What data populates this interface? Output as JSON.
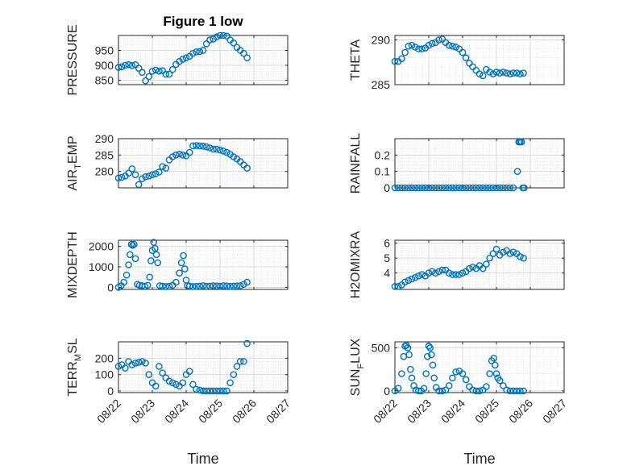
{
  "figure": {
    "title": "Figure 1 low"
  },
  "chart_data": [
    {
      "type": "scatter",
      "title": "Figure 1 low",
      "ylabel": "PRESSURE",
      "ylabel_parts": [
        "PRESSURE"
      ],
      "ylim": [
        835,
        1000
      ],
      "yticks": [
        850,
        900,
        950
      ],
      "ytick_labels": [
        "850",
        "900",
        "950"
      ],
      "xlim": [
        0,
        5
      ],
      "grid": true,
      "x": [
        0.0,
        0.1,
        0.2,
        0.3,
        0.4,
        0.5,
        0.6,
        0.7,
        0.8,
        0.9,
        1.0,
        1.1,
        1.2,
        1.3,
        1.4,
        1.5,
        1.6,
        1.7,
        1.8,
        1.9,
        2.0,
        2.1,
        2.2,
        2.3,
        2.4,
        2.5,
        2.6,
        2.7,
        2.8,
        2.9,
        3.0,
        3.1,
        3.2,
        3.3,
        3.4,
        3.5,
        3.6,
        3.7,
        3.8
      ],
      "y": [
        893,
        895,
        900,
        902,
        899,
        902,
        890,
        876,
        848,
        862,
        880,
        884,
        880,
        882,
        870,
        870,
        886,
        903,
        913,
        920,
        925,
        930,
        940,
        945,
        946,
        950,
        972,
        985,
        988,
        995,
        1000,
        1000,
        998,
        985,
        975,
        960,
        950,
        940,
        925
      ]
    },
    {
      "type": "scatter",
      "ylabel": "THETA",
      "ylabel_parts": [
        "THETA"
      ],
      "ylim": [
        285,
        290.5
      ],
      "yticks": [
        285,
        290
      ],
      "ytick_labels": [
        "285",
        "290"
      ],
      "xlim": [
        0,
        5
      ],
      "grid": true,
      "x": [
        0.0,
        0.1,
        0.2,
        0.3,
        0.4,
        0.5,
        0.6,
        0.7,
        0.8,
        0.9,
        1.0,
        1.1,
        1.2,
        1.3,
        1.4,
        1.5,
        1.6,
        1.7,
        1.8,
        1.9,
        2.0,
        2.1,
        2.2,
        2.3,
        2.4,
        2.5,
        2.6,
        2.7,
        2.8,
        2.9,
        3.0,
        3.1,
        3.2,
        3.3,
        3.4,
        3.5,
        3.6,
        3.7,
        3.8
      ],
      "y": [
        287.6,
        287.6,
        287.9,
        288.6,
        289.3,
        289.4,
        289.2,
        289.0,
        289.0,
        289.1,
        289.4,
        289.6,
        289.7,
        290.0,
        290.1,
        289.7,
        289.4,
        289.3,
        289.2,
        289.0,
        288.6,
        288.0,
        287.4,
        287.0,
        286.6,
        286.2,
        286.0,
        286.7,
        286.4,
        286.2,
        286.4,
        286.3,
        286.4,
        286.3,
        286.2,
        286.3,
        286.3,
        286.2,
        286.3
      ]
    },
    {
      "type": "scatter",
      "ylabel": "AIR_TEMP",
      "ylabel_parts": [
        "AIR",
        "T",
        "EMP"
      ],
      "ylim": [
        275,
        290
      ],
      "yticks": [
        280,
        285,
        290
      ],
      "ytick_labels": [
        "280",
        "285",
        "290"
      ],
      "xlim": [
        0,
        5
      ],
      "grid": true,
      "x": [
        0.0,
        0.1,
        0.2,
        0.3,
        0.4,
        0.5,
        0.6,
        0.7,
        0.8,
        0.9,
        1.0,
        1.1,
        1.2,
        1.3,
        1.4,
        1.5,
        1.6,
        1.7,
        1.8,
        1.9,
        2.0,
        2.1,
        2.2,
        2.3,
        2.4,
        2.5,
        2.6,
        2.7,
        2.8,
        2.9,
        3.0,
        3.1,
        3.2,
        3.3,
        3.4,
        3.5,
        3.6,
        3.7,
        3.8
      ],
      "y": [
        278.0,
        278.2,
        278.6,
        279.5,
        280.8,
        279.0,
        276.0,
        277.8,
        278.4,
        278.6,
        279.0,
        279.3,
        279.8,
        281.5,
        281.0,
        283.5,
        284.5,
        285.0,
        285.3,
        285.0,
        284.8,
        285.8,
        287.8,
        287.9,
        287.8,
        287.7,
        287.5,
        287.2,
        286.8,
        286.8,
        286.5,
        286.2,
        285.8,
        285.2,
        284.5,
        283.8,
        283.0,
        282.0,
        281.0
      ]
    },
    {
      "type": "scatter",
      "ylabel": "RAINFALL",
      "ylabel_parts": [
        "RAINFALL"
      ],
      "ylim": [
        0,
        0.3
      ],
      "yticks": [
        0,
        0.1,
        0.2
      ],
      "ytick_labels": [
        "0",
        "0.1",
        "0.2"
      ],
      "xlim": [
        0,
        5
      ],
      "grid": true,
      "x": [
        0.0,
        0.1,
        0.2,
        0.3,
        0.4,
        0.5,
        0.6,
        0.7,
        0.8,
        0.9,
        1.0,
        1.1,
        1.2,
        1.3,
        1.4,
        1.5,
        1.6,
        1.7,
        1.8,
        1.9,
        2.0,
        2.1,
        2.2,
        2.3,
        2.4,
        2.5,
        2.6,
        2.7,
        2.8,
        2.9,
        3.0,
        3.1,
        3.2,
        3.3,
        3.4,
        3.5,
        3.62,
        3.66,
        3.7,
        3.74,
        3.78,
        3.82
      ],
      "y": [
        0,
        0,
        0,
        0,
        0,
        0,
        0,
        0,
        0,
        0,
        0,
        0,
        0,
        0,
        0,
        0,
        0,
        0,
        0,
        0,
        0,
        0,
        0,
        0,
        0,
        0,
        0,
        0,
        0,
        0,
        0,
        0,
        0,
        0,
        0,
        0,
        0.1,
        0.28,
        0.28,
        0.28,
        0,
        0
      ]
    },
    {
      "type": "scatter",
      "ylabel": "MIXDEPTH",
      "ylabel_parts": [
        "MIXDEPTH"
      ],
      "ylim": [
        -100,
        2300
      ],
      "yticks": [
        0,
        1000,
        2000
      ],
      "ytick_labels": [
        "0",
        "1000",
        "2000"
      ],
      "xlim": [
        0,
        5
      ],
      "grid": true,
      "x": [
        0.0,
        0.08,
        0.16,
        0.24,
        0.3,
        0.34,
        0.38,
        0.42,
        0.46,
        0.5,
        0.56,
        0.62,
        0.7,
        0.78,
        0.86,
        0.92,
        0.96,
        1.0,
        1.04,
        1.08,
        1.12,
        1.16,
        1.22,
        1.3,
        1.4,
        1.5,
        1.6,
        1.7,
        1.8,
        1.86,
        1.92,
        1.96,
        2.0,
        2.04,
        2.1,
        2.2,
        2.3,
        2.4,
        2.5,
        2.6,
        2.7,
        2.8,
        2.9,
        3.0,
        3.1,
        3.2,
        3.3,
        3.4,
        3.5,
        3.6,
        3.7,
        3.8
      ],
      "y": [
        0,
        80,
        250,
        600,
        1100,
        1600,
        2100,
        2050,
        2100,
        1400,
        150,
        100,
        80,
        50,
        100,
        500,
        1300,
        1800,
        2200,
        1900,
        1600,
        1200,
        80,
        60,
        40,
        50,
        100,
        250,
        700,
        1200,
        1550,
        900,
        350,
        80,
        60,
        40,
        50,
        60,
        80,
        50,
        60,
        80,
        70,
        60,
        80,
        70,
        50,
        60,
        70,
        80,
        150,
        250
      ]
    },
    {
      "type": "scatter",
      "ylabel": "H2OMIXRA",
      "ylabel_parts": [
        "H2OMIXRA"
      ],
      "ylim": [
        2.9,
        6.2
      ],
      "yticks": [
        4,
        5,
        6
      ],
      "ytick_labels": [
        "4",
        "5",
        "6"
      ],
      "xlim": [
        0,
        5
      ],
      "grid": true,
      "x": [
        0.0,
        0.1,
        0.2,
        0.3,
        0.4,
        0.5,
        0.6,
        0.7,
        0.8,
        0.9,
        1.0,
        1.1,
        1.2,
        1.3,
        1.4,
        1.5,
        1.6,
        1.7,
        1.8,
        1.9,
        2.0,
        2.1,
        2.2,
        2.3,
        2.4,
        2.5,
        2.6,
        2.7,
        2.8,
        2.9,
        3.0,
        3.1,
        3.2,
        3.3,
        3.4,
        3.5,
        3.6,
        3.7,
        3.8
      ],
      "y": [
        3.1,
        3.1,
        3.2,
        3.4,
        3.5,
        3.6,
        3.7,
        3.8,
        3.9,
        3.8,
        4.0,
        4.1,
        4.0,
        4.1,
        4.2,
        4.2,
        4.0,
        3.9,
        3.9,
        3.9,
        4.0,
        4.1,
        4.3,
        4.4,
        4.3,
        4.5,
        4.3,
        4.6,
        5.0,
        5.3,
        5.6,
        5.2,
        5.4,
        5.5,
        5.3,
        5.4,
        5.3,
        5.1,
        5.0
      ]
    },
    {
      "type": "scatter",
      "ylabel": "TERR_MSL",
      "ylabel_parts": [
        "TERR",
        "M",
        "SL"
      ],
      "ylim": [
        -10,
        300
      ],
      "yticks": [
        0,
        100,
        200
      ],
      "ytick_labels": [
        "0",
        "100",
        "200"
      ],
      "xlim": [
        0,
        5
      ],
      "grid": true,
      "x": [
        0.0,
        0.1,
        0.2,
        0.3,
        0.4,
        0.5,
        0.6,
        0.7,
        0.8,
        0.9,
        1.0,
        1.1,
        1.2,
        1.3,
        1.4,
        1.5,
        1.6,
        1.7,
        1.8,
        1.9,
        2.0,
        2.1,
        2.2,
        2.3,
        2.4,
        2.5,
        2.6,
        2.7,
        2.8,
        2.9,
        3.0,
        3.1,
        3.2,
        3.3,
        3.4,
        3.5,
        3.6,
        3.7,
        3.8
      ],
      "y": [
        150,
        160,
        140,
        180,
        160,
        170,
        175,
        180,
        170,
        100,
        50,
        30,
        150,
        110,
        80,
        60,
        50,
        40,
        30,
        50,
        100,
        120,
        40,
        10,
        5,
        0,
        0,
        0,
        0,
        0,
        0,
        0,
        0,
        50,
        100,
        150,
        180,
        180,
        290
      ]
    },
    {
      "type": "scatter",
      "ylabel": "SUN_FLUX",
      "ylabel_parts": [
        "SUN",
        "F",
        "LUX"
      ],
      "ylim": [
        -20,
        570
      ],
      "yticks": [
        0,
        500
      ],
      "ytick_labels": [
        "0",
        "500"
      ],
      "xlim": [
        0,
        5
      ],
      "grid": true,
      "x": [
        0.0,
        0.1,
        0.2,
        0.26,
        0.3,
        0.34,
        0.38,
        0.42,
        0.46,
        0.5,
        0.56,
        0.62,
        0.7,
        0.78,
        0.86,
        0.92,
        0.96,
        1.0,
        1.04,
        1.08,
        1.12,
        1.16,
        1.22,
        1.3,
        1.4,
        1.5,
        1.6,
        1.7,
        1.8,
        1.9,
        2.0,
        2.1,
        2.2,
        2.3,
        2.4,
        2.5,
        2.6,
        2.7,
        2.8,
        2.86,
        2.92,
        2.96,
        3.0,
        3.04,
        3.1,
        3.2,
        3.3,
        3.4,
        3.5,
        3.6,
        3.7,
        3.8
      ],
      "y": [
        0,
        30,
        200,
        400,
        520,
        530,
        500,
        420,
        250,
        150,
        60,
        10,
        0,
        0,
        30,
        200,
        400,
        520,
        500,
        420,
        300,
        150,
        40,
        0,
        0,
        10,
        60,
        150,
        220,
        230,
        200,
        130,
        50,
        10,
        0,
        0,
        10,
        50,
        200,
        350,
        380,
        300,
        200,
        150,
        120,
        60,
        10,
        0,
        0,
        0,
        0,
        0
      ]
    }
  ],
  "time_axis": {
    "tick_labels": [
      "08/22",
      "08/23",
      "08/24",
      "08/25",
      "08/26",
      "08/27"
    ],
    "label": "Time"
  },
  "colors": {
    "marker": "#0072BD",
    "axis": "#262626",
    "grid": "#d9d9d9"
  }
}
